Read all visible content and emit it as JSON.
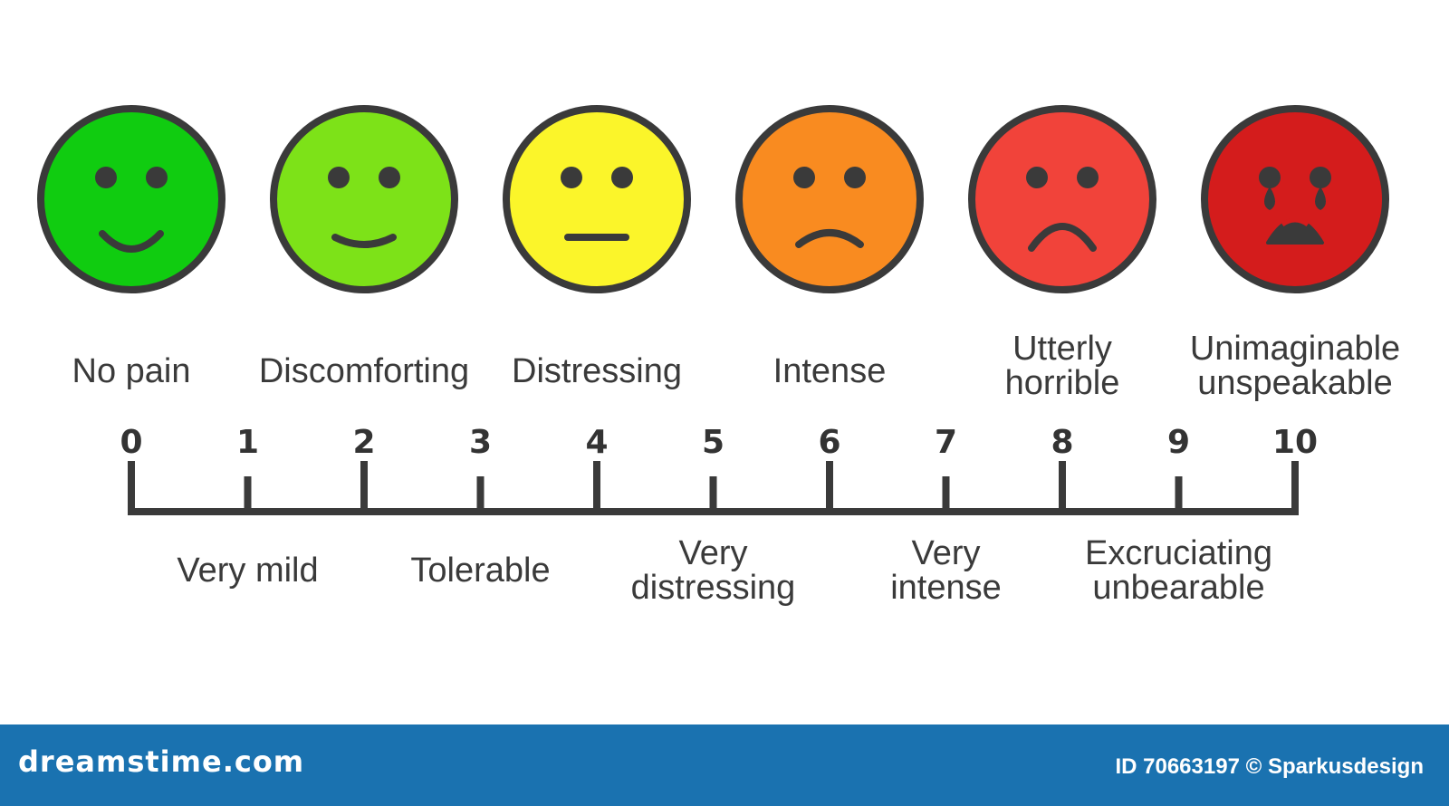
{
  "faces": [
    {
      "label_lines": [
        "No pain"
      ],
      "color": "#10cc10",
      "expression": "smile-big"
    },
    {
      "label_lines": [
        "Discomforting"
      ],
      "color": "#7de218",
      "expression": "smile-small"
    },
    {
      "label_lines": [
        "Distressing"
      ],
      "color": "#fbf52a",
      "expression": "neutral"
    },
    {
      "label_lines": [
        "Intense"
      ],
      "color": "#f98b20",
      "expression": "frown-small"
    },
    {
      "label_lines": [
        "Utterly",
        "horrible"
      ],
      "color": "#f1433a",
      "expression": "frown-big"
    },
    {
      "label_lines": [
        "Unimaginable",
        "unspeakable"
      ],
      "color": "#d41c1c",
      "expression": "crying"
    }
  ],
  "scale": {
    "ticks": [
      "0",
      "1",
      "2",
      "3",
      "4",
      "5",
      "6",
      "7",
      "8",
      "9",
      "10"
    ],
    "odd_labels": [
      {
        "value": 1,
        "lines": [
          "Very mild"
        ]
      },
      {
        "value": 3,
        "lines": [
          "Tolerable"
        ]
      },
      {
        "value": 5,
        "lines": [
          "Very",
          "distressing"
        ]
      },
      {
        "value": 7,
        "lines": [
          "Very",
          "intense"
        ]
      },
      {
        "value": 9,
        "lines": [
          "Excruciating",
          "unbearable"
        ]
      }
    ]
  },
  "footer": {
    "brand": "dreamstime.com",
    "credit": "ID 70663197 © Sparkusdesign"
  },
  "colors": {
    "outline": "#3a3a3a",
    "footer_bg": "#1a72b0"
  }
}
